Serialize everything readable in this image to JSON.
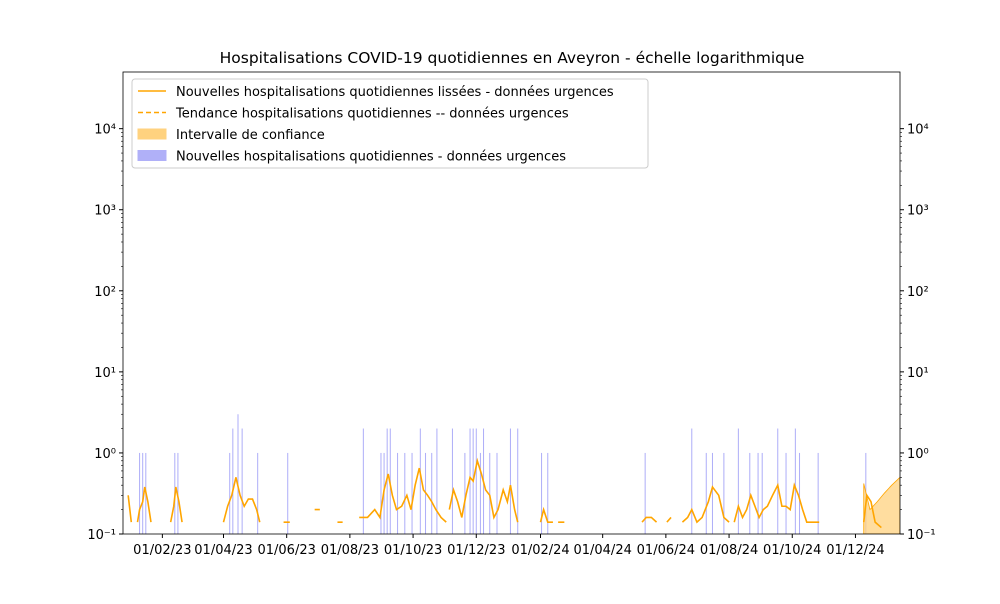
{
  "chart_data": {
    "type": "combo",
    "title": "Hospitalisations COVID-19 quotidiennes en Aveyron - échelle logarithmique",
    "log_scale": true,
    "xlim": [
      "2022-12-25",
      "2025-01-13"
    ],
    "ylim": [
      0.1,
      50000
    ],
    "yticks": [
      {
        "value": 0.1,
        "label": "10⁻¹"
      },
      {
        "value": 1,
        "label": "10⁰"
      },
      {
        "value": 10,
        "label": "10¹"
      },
      {
        "value": 100,
        "label": "10²"
      },
      {
        "value": 1000,
        "label": "10³"
      },
      {
        "value": 10000,
        "label": "10⁴"
      }
    ],
    "xticks": [
      {
        "value": "2023-02-01",
        "label": "01/02/23"
      },
      {
        "value": "2023-04-01",
        "label": "01/04/23"
      },
      {
        "value": "2023-06-01",
        "label": "01/06/23"
      },
      {
        "value": "2023-08-01",
        "label": "01/08/23"
      },
      {
        "value": "2023-10-01",
        "label": "01/10/23"
      },
      {
        "value": "2023-12-01",
        "label": "01/12/23"
      },
      {
        "value": "2024-02-01",
        "label": "01/02/24"
      },
      {
        "value": "2024-04-01",
        "label": "01/04/24"
      },
      {
        "value": "2024-06-01",
        "label": "01/06/24"
      },
      {
        "value": "2024-08-01",
        "label": "01/08/24"
      },
      {
        "value": "2024-10-01",
        "label": "01/10/24"
      },
      {
        "value": "2024-12-01",
        "label": "01/12/24"
      }
    ],
    "legend": "upper left",
    "series": [
      {
        "name": "Nouvelles hospitalisations quotidiennes lissées - données urgences",
        "type": "line",
        "color": "#ffa500",
        "x": [
          "2022-12-30",
          "2023-01-02",
          null,
          "2023-01-08",
          "2023-01-10",
          "2023-01-13",
          "2023-01-15",
          "2023-01-18",
          "2023-01-21",
          null,
          "2023-02-09",
          "2023-02-12",
          "2023-02-14",
          "2023-02-17",
          "2023-02-20",
          null,
          "2023-04-01",
          "2023-04-05",
          "2023-04-09",
          "2023-04-13",
          "2023-04-17",
          "2023-04-21",
          "2023-04-25",
          "2023-04-29",
          "2023-05-03",
          "2023-05-06",
          null,
          "2023-05-29",
          "2023-06-04",
          null,
          "2023-06-28",
          "2023-07-03",
          null,
          "2023-07-20",
          "2023-07-25",
          null,
          "2023-08-10",
          "2023-08-18",
          "2023-08-25",
          "2023-08-30",
          "2023-09-03",
          "2023-09-07",
          "2023-09-11",
          "2023-09-15",
          "2023-09-20",
          "2023-09-25",
          "2023-09-29",
          "2023-10-03",
          "2023-10-07",
          "2023-10-11",
          "2023-10-15",
          "2023-10-19",
          "2023-10-23",
          "2023-10-28",
          "2023-11-02",
          null,
          "2023-11-05",
          "2023-11-09",
          "2023-11-13",
          "2023-11-17",
          "2023-11-21",
          "2023-11-25",
          "2023-11-28",
          "2023-12-02",
          "2023-12-06",
          "2023-12-10",
          "2023-12-14",
          "2023-12-18",
          "2023-12-22",
          "2023-12-27",
          "2023-12-31",
          "2024-01-03",
          "2024-01-07",
          "2024-01-10",
          null,
          "2024-02-01",
          "2024-02-04",
          "2024-02-08",
          "2024-02-13",
          null,
          "2024-02-18",
          "2024-02-24",
          null,
          "2024-05-09",
          "2024-05-13",
          "2024-05-18",
          "2024-05-23",
          null,
          "2024-06-02",
          "2024-06-06",
          null,
          "2024-06-17",
          "2024-06-22",
          "2024-06-26",
          "2024-07-01",
          "2024-07-06",
          "2024-07-12",
          "2024-07-16",
          "2024-07-22",
          "2024-07-27",
          "2024-08-01",
          null,
          "2024-08-06",
          "2024-08-10",
          "2024-08-14",
          "2024-08-18",
          "2024-08-22",
          "2024-08-26",
          "2024-08-30",
          "2024-09-03",
          "2024-09-07",
          "2024-09-12",
          "2024-09-17",
          "2024-09-21",
          "2024-09-25",
          "2024-09-29",
          "2024-10-03",
          "2024-10-07",
          "2024-10-11",
          "2024-10-15",
          "2024-10-27",
          null,
          "2024-12-09",
          "2024-12-12",
          "2024-12-16",
          "2024-12-20",
          "2024-12-26"
        ],
        "values": [
          0.3,
          0.14,
          null,
          0.14,
          0.2,
          0.25,
          0.38,
          0.25,
          0.14,
          null,
          0.14,
          0.22,
          0.38,
          0.25,
          0.14,
          null,
          0.14,
          0.22,
          0.3,
          0.5,
          0.3,
          0.22,
          0.27,
          0.27,
          0.2,
          0.14,
          null,
          0.14,
          0.14,
          null,
          0.2,
          0.2,
          null,
          0.14,
          0.14,
          null,
          0.16,
          0.16,
          0.2,
          0.16,
          0.35,
          0.55,
          0.3,
          0.2,
          0.22,
          0.3,
          0.2,
          0.4,
          0.65,
          0.35,
          0.3,
          0.25,
          0.2,
          0.16,
          0.14,
          null,
          0.2,
          0.35,
          0.25,
          0.16,
          0.3,
          0.5,
          0.45,
          0.8,
          0.55,
          0.35,
          0.3,
          0.16,
          0.2,
          0.35,
          0.25,
          0.4,
          0.2,
          0.14,
          null,
          0.14,
          0.2,
          0.14,
          0.14,
          null,
          0.14,
          0.14,
          null,
          0.14,
          0.16,
          0.16,
          0.14,
          null,
          0.14,
          0.16,
          null,
          0.14,
          0.16,
          0.2,
          0.14,
          0.16,
          0.25,
          0.38,
          0.3,
          0.16,
          0.14,
          null,
          0.14,
          0.22,
          0.16,
          0.2,
          0.3,
          0.22,
          0.16,
          0.2,
          0.22,
          0.3,
          0.4,
          0.22,
          0.22,
          0.2,
          0.4,
          0.3,
          0.2,
          0.14,
          0.14,
          null,
          0.14,
          0.3,
          0.25,
          0.14,
          0.12
        ]
      },
      {
        "name": "Tendance hospitalisations quotidiennes -- données urgences",
        "type": "trend",
        "color": "#ffa500"
      },
      {
        "name": "Intervalle de confiance",
        "type": "area",
        "color": "#ffd27f",
        "x": [
          "2024-12-09",
          "2024-12-15",
          "2024-12-22",
          "2024-12-29",
          "2025-01-05",
          "2025-01-13"
        ],
        "lower": [
          0.1,
          0.1,
          0.1,
          0.1,
          0.1,
          0.1
        ],
        "upper": [
          0.42,
          0.2,
          0.25,
          0.32,
          0.4,
          0.5
        ]
      },
      {
        "name": "Nouvelles hospitalisations quotidiennes - données urgences",
        "type": "bar",
        "color": "#b0b0f8",
        "x": [
          "2023-01-10",
          "2023-01-13",
          "2023-01-16",
          "2023-02-13",
          "2023-02-16",
          "2023-04-07",
          "2023-04-10",
          "2023-04-15",
          "2023-04-19",
          "2023-05-04",
          "2023-06-02",
          "2023-08-14",
          "2023-08-31",
          "2023-09-03",
          "2023-09-06",
          "2023-09-09",
          "2023-09-16",
          "2023-09-23",
          "2023-09-30",
          "2023-10-08",
          "2023-10-13",
          "2023-10-19",
          "2023-10-24",
          "2023-11-08",
          "2023-11-20",
          "2023-11-25",
          "2023-11-28",
          "2023-12-01",
          "2023-12-05",
          "2023-12-08",
          "2023-12-14",
          "2023-12-21",
          "2024-01-03",
          "2024-01-10",
          "2024-02-02",
          "2024-02-08",
          "2024-05-12",
          "2024-06-26",
          "2024-07-10",
          "2024-07-16",
          "2024-07-27",
          "2024-08-10",
          "2024-08-21",
          "2024-08-29",
          "2024-09-02",
          "2024-09-17",
          "2024-09-25",
          "2024-10-04",
          "2024-10-08",
          "2024-10-26",
          "2024-12-11"
        ],
        "values": [
          1,
          1,
          1,
          1,
          1,
          1,
          2,
          3,
          2,
          1,
          1,
          2,
          1,
          1,
          2,
          2,
          1,
          1,
          1,
          2,
          1,
          1,
          2,
          2,
          1,
          2,
          2,
          2,
          1,
          2,
          1,
          1,
          2,
          2,
          1,
          1,
          1,
          2,
          1,
          1,
          1,
          2,
          1,
          1,
          1,
          2,
          1,
          2,
          1,
          1,
          1
        ]
      }
    ]
  }
}
